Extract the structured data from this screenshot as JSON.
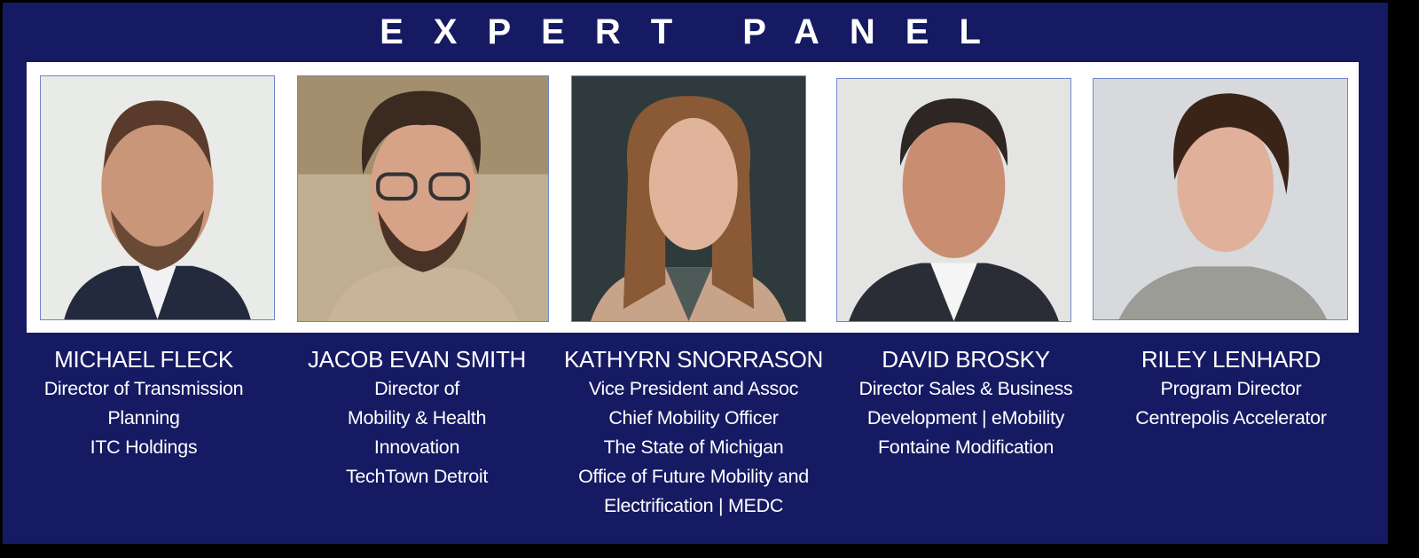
{
  "title": "EXPERT PANEL",
  "colors": {
    "background": "#161a63",
    "text": "#ffffff",
    "strip": "#ffffff",
    "border": "#000000"
  },
  "panelists": [
    {
      "name": "MICHAEL FLECK",
      "lines": [
        "Director of Transmission",
        "Planning",
        "ITC Holdings"
      ]
    },
    {
      "name": "JACOB EVAN SMITH",
      "lines": [
        "Director of",
        "Mobility & Health",
        "Innovation",
        "TechTown Detroit"
      ]
    },
    {
      "name": "KATHYRN SNORRASON",
      "lines": [
        "Vice President and Assoc",
        "Chief Mobility Officer",
        "The State of Michigan",
        "Office of Future Mobility and",
        "Electrification | MEDC"
      ]
    },
    {
      "name": "DAVID BROSKY",
      "lines": [
        "Director Sales & Business",
        "Development | eMobility",
        "Fontaine Modification"
      ]
    },
    {
      "name": "RILEY LENHARD",
      "lines": [
        "Program Director",
        "Centrepolis Accelerator"
      ]
    }
  ]
}
